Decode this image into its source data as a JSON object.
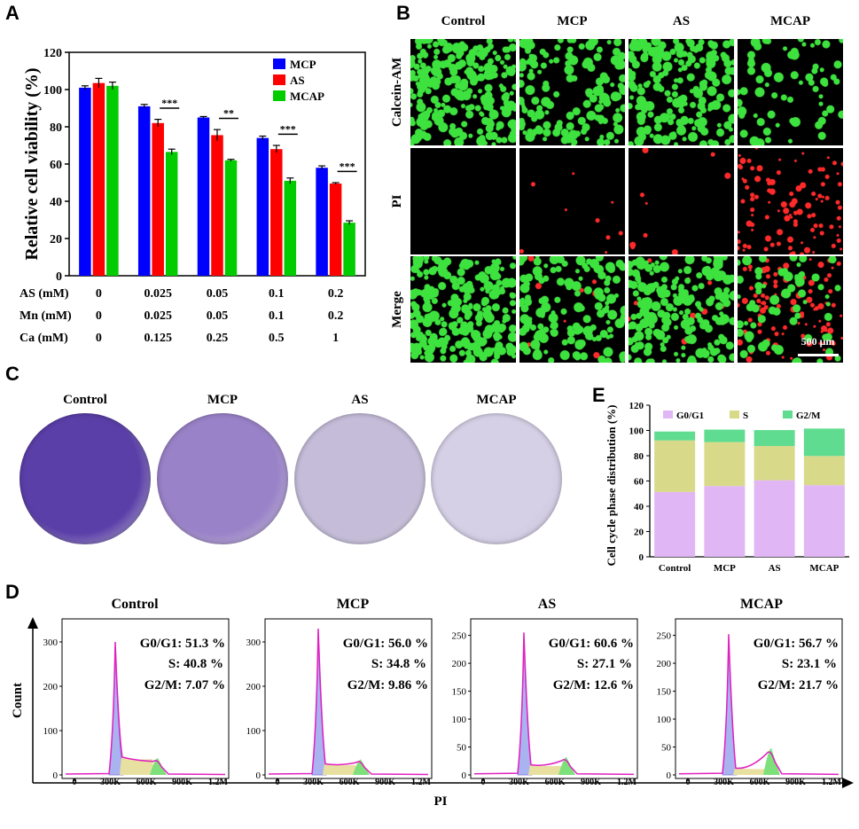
{
  "panels": {
    "a": "A",
    "b": "B",
    "c": "C",
    "d": "D",
    "e": "E"
  },
  "panel_a": {
    "chart_data": {
      "type": "bar",
      "ylabel": "Relative cell viability (%)",
      "ylim": [
        0,
        120
      ],
      "yticks": [
        0,
        20,
        40,
        60,
        80,
        100,
        120
      ],
      "categories": [
        "0",
        "0.025",
        "0.05",
        "0.1",
        "0.2"
      ],
      "series": [
        {
          "name": "MCP",
          "color": "#0000ff",
          "values": [
            101,
            91,
            85,
            74,
            58
          ],
          "errors": [
            1,
            1,
            0.5,
            1,
            1
          ]
        },
        {
          "name": "AS",
          "color": "#ff0000",
          "values": [
            103.5,
            82,
            75.5,
            68,
            49.5
          ],
          "errors": [
            2.5,
            2,
            3,
            2,
            0.5
          ]
        },
        {
          "name": "MCAP",
          "color": "#00cc00",
          "values": [
            102,
            66.5,
            62,
            51,
            28.5
          ],
          "errors": [
            2,
            1.5,
            0.5,
            1.5,
            1
          ]
        }
      ],
      "significance": [
        "",
        "***",
        "**",
        "***",
        "***"
      ],
      "conditions": [
        {
          "label": "AS (mM)",
          "values": [
            "0",
            "0.025",
            "0.05",
            "0.1",
            "0.2"
          ]
        },
        {
          "label": "Mn (mM)",
          "values": [
            "0",
            "0.025",
            "0.05",
            "0.1",
            "0.2"
          ]
        },
        {
          "label": "Ca (mM)",
          "values": [
            "0",
            "0.125",
            "0.25",
            "0.5",
            "1"
          ]
        }
      ],
      "legend_position": "top-right"
    }
  },
  "panel_b": {
    "columns": [
      "Control",
      "MCP",
      "AS",
      "MCAP"
    ],
    "rows": [
      "Calcein-AM",
      "PI",
      "Merge"
    ],
    "green_density": [
      0.9,
      0.55,
      0.7,
      0.25
    ],
    "red_density": [
      0,
      0.05,
      0.05,
      0.55
    ],
    "scale_bar": "500 μm"
  },
  "panel_c": {
    "labels": [
      "Control",
      "MCP",
      "AS",
      "MCAP"
    ],
    "dish_colors": [
      "#5a3fa8",
      "#9a82c8",
      "#c4bcd8",
      "#d6d0e6"
    ]
  },
  "panel_e": {
    "chart_data": {
      "type": "bar",
      "stacked": true,
      "ylabel": "Cell cycle phase distribution (%)",
      "ylim": [
        0,
        120
      ],
      "yticks": [
        0,
        20,
        40,
        60,
        80,
        100,
        120
      ],
      "categories": [
        "Control",
        "MCP",
        "AS",
        "MCAP"
      ],
      "series": [
        {
          "name": "G0/G1",
          "color": "#e0b6f4",
          "values": [
            51.3,
            56.0,
            60.6,
            56.7
          ]
        },
        {
          "name": "S",
          "color": "#d9d98a",
          "values": [
            40.8,
            34.8,
            27.1,
            23.1
          ]
        },
        {
          "name": "G2/M",
          "color": "#5fdc90",
          "values": [
            7.07,
            9.86,
            12.6,
            21.7
          ]
        }
      ],
      "legend_position": "top"
    }
  },
  "panel_d": {
    "ylabel": "Count",
    "xlabel": "PI",
    "xticks": [
      "0",
      "300K",
      "600K",
      "900K",
      "1.2M"
    ],
    "histograms": [
      {
        "title": "Control",
        "g0g1": "G0/G1: 51.3 %",
        "s": "S: 40.8 %",
        "g2m": "G2/M: 7.07 %",
        "yticks": [
          "0",
          "100",
          "200",
          "300"
        ],
        "ymax": 340,
        "peak": 300,
        "s_level": 40,
        "g2_peak": 38
      },
      {
        "title": "MCP",
        "g0g1": "G0/G1: 56.0 %",
        "s": "S: 34.8 %",
        "g2m": "G2/M: 9.86 %",
        "yticks": [
          "0",
          "100",
          "200",
          "300"
        ],
        "ymax": 340,
        "peak": 330,
        "s_level": 25,
        "g2_peak": 35
      },
      {
        "title": "AS",
        "g0g1": "G0/G1: 60.6 %",
        "s": "S: 27.1 %",
        "g2m": "G2/M: 12.6 %",
        "yticks": [
          "0",
          "50",
          "100",
          "150",
          "200",
          "250"
        ],
        "ymax": 270,
        "peak": 255,
        "s_level": 18,
        "g2_peak": 32
      },
      {
        "title": "MCAP",
        "g0g1": "G0/G1: 56.7 %",
        "s": "S: 23.1 %",
        "g2m": "G2/M: 21.7 %",
        "yticks": [
          "0",
          "50",
          "100",
          "150",
          "200",
          "250"
        ],
        "ymax": 270,
        "peak": 252,
        "s_level": 12,
        "g2_peak": 48
      }
    ]
  }
}
